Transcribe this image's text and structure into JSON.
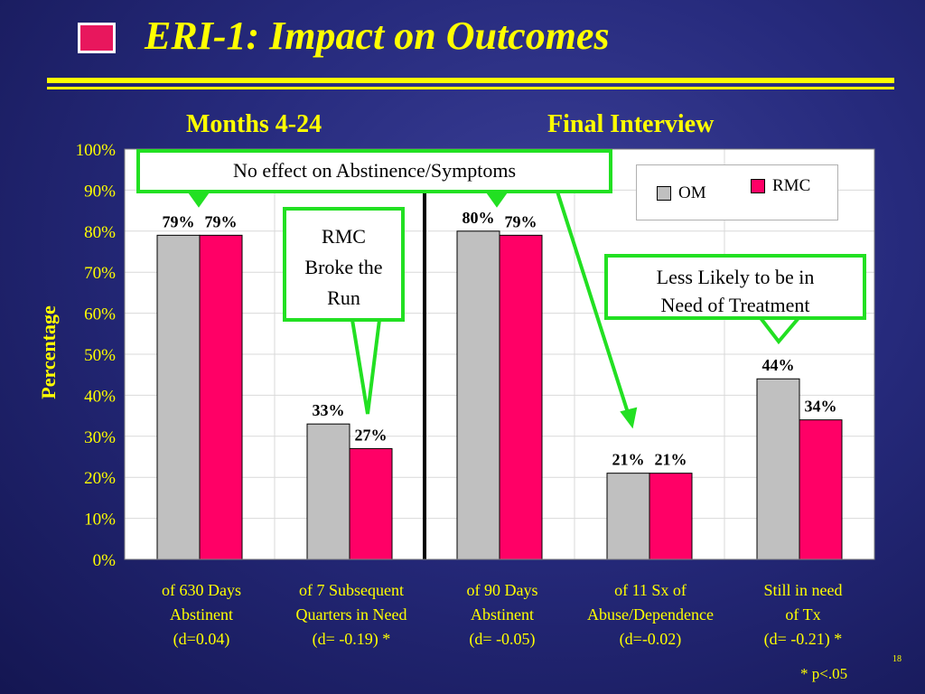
{
  "title": "ERI-1:  Impact on Outcomes",
  "sections": {
    "left": "Months 4-24",
    "right": "Final Interview"
  },
  "colors": {
    "background": "#262a7c",
    "text": "#ffff00",
    "om": "#c0c0c0",
    "rmc": "#ff0066",
    "callout_border": "#22e022"
  },
  "chart_data": {
    "type": "bar",
    "ylabel": "Percentage",
    "ylim": [
      0,
      100
    ],
    "yticks": [
      "0%",
      "10%",
      "20%",
      "30%",
      "40%",
      "50%",
      "60%",
      "70%",
      "80%",
      "90%",
      "100%"
    ],
    "grid": true,
    "legend": "top-right",
    "categories": [
      [
        "of 630 Days",
        "Abstinent",
        "(d=0.04)"
      ],
      [
        "of 7 Subsequent",
        "Quarters in Need",
        "(d= -0.19) *"
      ],
      [
        "of 90 Days",
        "Abstinent",
        "(d= -0.05)"
      ],
      [
        "of 11 Sx of",
        "Abuse/Dependence",
        "(d=-0.02)"
      ],
      [
        "Still in need",
        "of Tx",
        "(d= -0.21) *"
      ]
    ],
    "series": [
      {
        "name": "OM",
        "values": [
          79,
          33,
          80,
          21,
          44
        ],
        "labels": [
          "79%",
          "33%",
          "80%",
          "21%",
          "44%"
        ]
      },
      {
        "name": "RMC",
        "values": [
          79,
          27,
          79,
          21,
          34
        ],
        "labels": [
          "79%",
          "27%",
          "79%",
          "21%",
          "34%"
        ]
      }
    ]
  },
  "callouts": {
    "no_effect": "No effect on Abstinence/Symptoms",
    "broke_run": [
      "RMC",
      "Broke the",
      "Run"
    ],
    "less_likely": [
      "Less Likely to be in",
      "Need of Treatment"
    ]
  },
  "footnote": "* p<.05",
  "slide_number": "18"
}
